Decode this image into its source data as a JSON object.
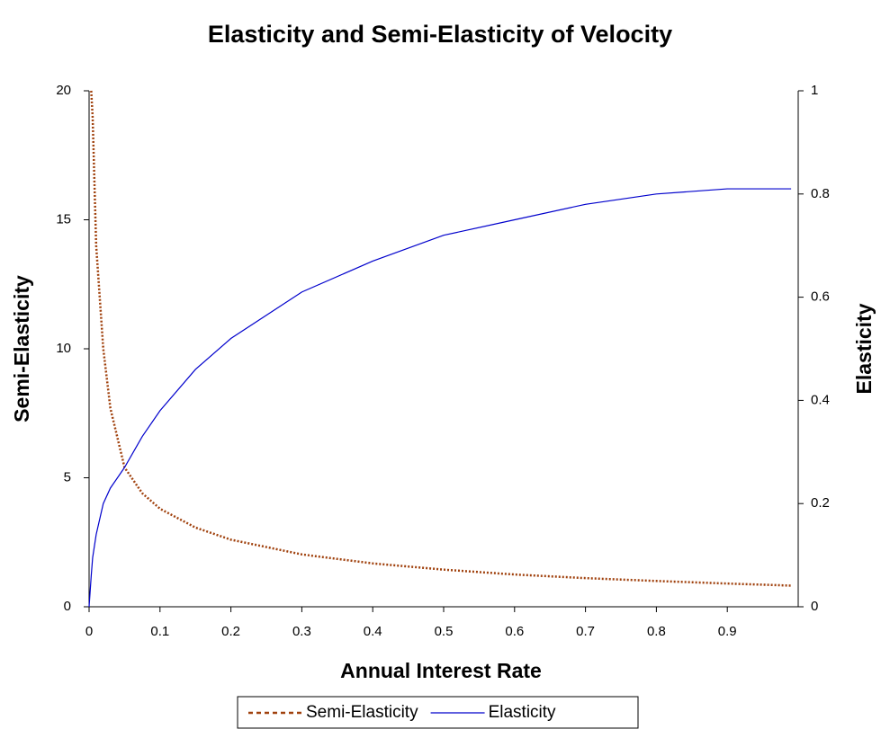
{
  "chart_data": {
    "type": "line",
    "title": "Elasticity and Semi-Elasticity of Velocity",
    "x_label": "Annual Interest Rate",
    "y_label": "Semi-Elasticity",
    "y2_label": "Elasticity",
    "x": [
      0,
      0.003,
      0.005,
      0.01,
      0.02,
      0.03,
      0.05,
      0.075,
      0.1,
      0.15,
      0.2,
      0.3,
      0.4,
      0.5,
      0.6,
      0.7,
      0.8,
      0.9,
      0.99
    ],
    "series": [
      {
        "name": "Semi-Elasticity",
        "color": "#a0410d",
        "dash": "dotted",
        "values": [
          null,
          20,
          19,
          14,
          10,
          7.7,
          5.4,
          4.4,
          3.8,
          3.07,
          2.6,
          2.03,
          1.68,
          1.44,
          1.25,
          1.11,
          1.0,
          0.9,
          0.82
        ]
      },
      {
        "name": "Elasticity",
        "color": "#0000cc",
        "axis": "y2",
        "values": [
          0,
          0.06,
          0.095,
          0.14,
          0.2,
          0.23,
          0.27,
          0.33,
          0.38,
          0.46,
          0.52,
          0.61,
          0.67,
          0.72,
          0.75,
          0.78,
          0.8,
          0.81,
          0.81
        ]
      }
    ],
    "xlim": [
      0,
      1
    ],
    "xticks": [
      0,
      0.1,
      0.2,
      0.3,
      0.4,
      0.5,
      0.6,
      0.7,
      0.8,
      0.9
    ],
    "ylim": [
      0,
      20
    ],
    "yticks": [
      0,
      5,
      10,
      15,
      20
    ],
    "y2lim": [
      0,
      1
    ],
    "y2ticks": [
      0,
      0.2,
      0.4,
      0.6,
      0.8,
      1
    ],
    "grid": false,
    "legend": "bottom"
  }
}
